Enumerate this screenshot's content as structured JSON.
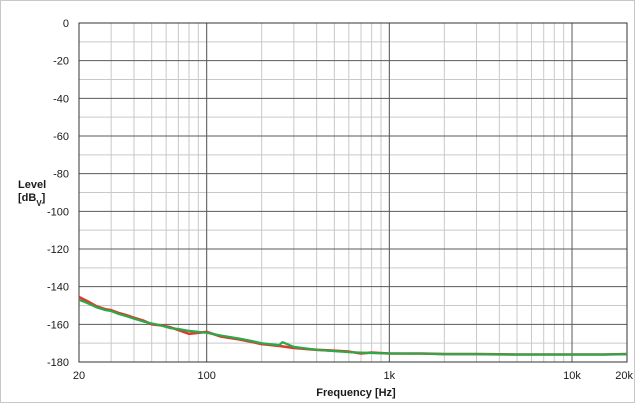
{
  "chart_data": {
    "type": "line",
    "title": "",
    "xlabel": "Frequency [Hz]",
    "ylabel_line1": "Level",
    "ylabel_main": "[dB",
    "ylabel_sub": "V",
    "ylabel_close": "]",
    "x_scale": "log",
    "xlim": [
      20,
      20000
    ],
    "ylim": [
      -180,
      0
    ],
    "grid": true,
    "legend": "none",
    "x_ticks": [
      {
        "value": 20,
        "label": "20"
      },
      {
        "value": 100,
        "label": "100"
      },
      {
        "value": 1000,
        "label": "1k"
      },
      {
        "value": 10000,
        "label": "10k"
      },
      {
        "value": 20000,
        "label": "20k"
      }
    ],
    "y_ticks": [
      {
        "value": 0,
        "label": "0"
      },
      {
        "value": -20,
        "label": "-20"
      },
      {
        "value": -40,
        "label": "-40"
      },
      {
        "value": -60,
        "label": "-60"
      },
      {
        "value": -80,
        "label": "-80"
      },
      {
        "value": -100,
        "label": "-100"
      },
      {
        "value": -120,
        "label": "-120"
      },
      {
        "value": -140,
        "label": "-140"
      },
      {
        "value": -160,
        "label": "-160"
      },
      {
        "value": -180,
        "label": "-180"
      }
    ],
    "series": [
      {
        "color": "#e03a2c",
        "x": [
          20,
          22,
          25,
          28,
          30,
          33,
          36,
          40,
          45,
          50,
          56,
          63,
          70,
          80,
          90,
          100,
          120,
          150,
          180,
          200,
          250,
          300,
          400,
          500,
          600,
          700,
          800,
          1000,
          1500,
          2000,
          3000,
          5000,
          7000,
          10000,
          15000,
          20000
        ],
        "y": [
          -145.5,
          -147.5,
          -150.5,
          -152,
          -152.5,
          -154,
          -155,
          -156.5,
          -158,
          -160,
          -160.5,
          -161.5,
          -163,
          -165,
          -164.5,
          -164,
          -166.5,
          -168,
          -169.5,
          -170.5,
          -171.5,
          -172.5,
          -173.5,
          -174,
          -174.5,
          -175.5,
          -175,
          -175.5,
          -175.5,
          -175.8,
          -175.8,
          -176,
          -176,
          -176,
          -176,
          -175.8
        ]
      },
      {
        "color": "#2aa84a",
        "x": [
          20,
          22,
          25,
          28,
          30,
          33,
          36,
          40,
          45,
          50,
          56,
          63,
          70,
          80,
          90,
          100,
          120,
          150,
          180,
          200,
          220,
          250,
          260,
          300,
          400,
          500,
          600,
          700,
          800,
          1000,
          1500,
          2000,
          3000,
          5000,
          7000,
          10000,
          15000,
          20000
        ],
        "y": [
          -147,
          -148.5,
          -151,
          -152.5,
          -153,
          -154.5,
          -155.5,
          -157,
          -158.5,
          -159.5,
          -160.5,
          -162,
          -162.5,
          -163.5,
          -164,
          -164.5,
          -166,
          -167.5,
          -169,
          -170,
          -170.5,
          -171,
          -169.5,
          -172,
          -173.5,
          -174.2,
          -174.8,
          -175,
          -175.2,
          -175.5,
          -175.6,
          -175.8,
          -175.8,
          -176,
          -176,
          -176,
          -176,
          -175.8
        ]
      }
    ]
  }
}
